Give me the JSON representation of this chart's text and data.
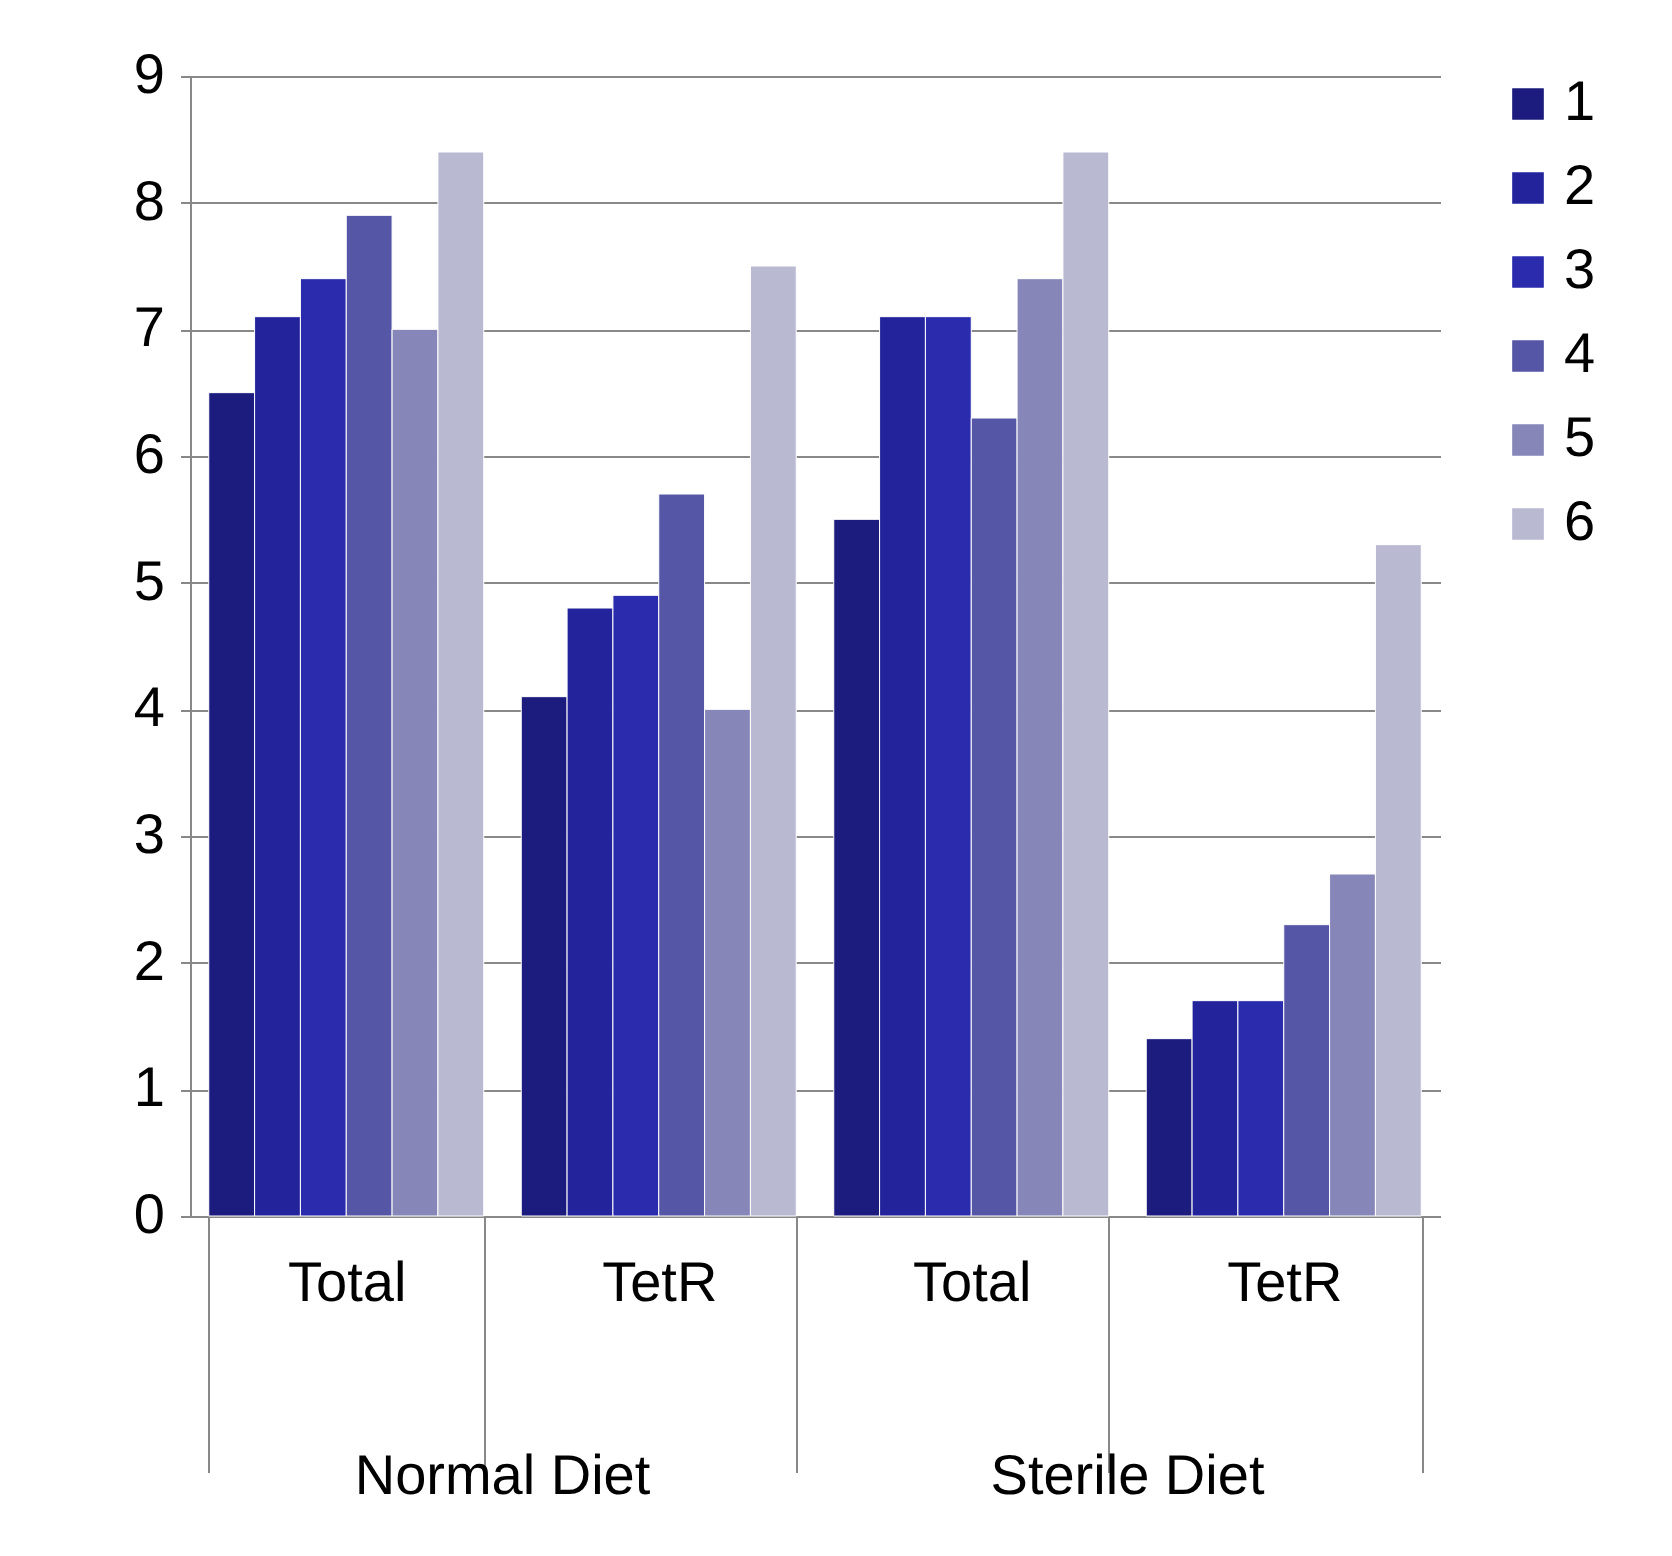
{
  "chart_data": {
    "type": "bar",
    "categories": [
      "Total",
      "TetR",
      "Total",
      "TetR"
    ],
    "series": [
      {
        "name": "1",
        "color": "#1c1c7e",
        "values": [
          6.5,
          4.1,
          5.5,
          1.4
        ]
      },
      {
        "name": "2",
        "color": "#23239c",
        "values": [
          7.1,
          4.8,
          7.1,
          1.7
        ]
      },
      {
        "name": "3",
        "color": "#2b2bad",
        "values": [
          7.4,
          4.9,
          7.1,
          1.7
        ]
      },
      {
        "name": "4",
        "color": "#5656a6",
        "values": [
          7.9,
          5.7,
          6.3,
          2.3
        ]
      },
      {
        "name": "5",
        "color": "#8686b8",
        "values": [
          7.0,
          4.0,
          7.4,
          2.7
        ]
      },
      {
        "name": "6",
        "color": "#b9b9d2",
        "values": [
          8.4,
          7.5,
          8.4,
          5.3
        ]
      }
    ],
    "ylim": [
      0,
      9
    ],
    "yticks": [
      0,
      1,
      2,
      3,
      4,
      5,
      6,
      7,
      8,
      9
    ],
    "grid": "y",
    "legend": "right",
    "annotations": [
      "Normal Diet",
      "Sterile Diet"
    ]
  }
}
